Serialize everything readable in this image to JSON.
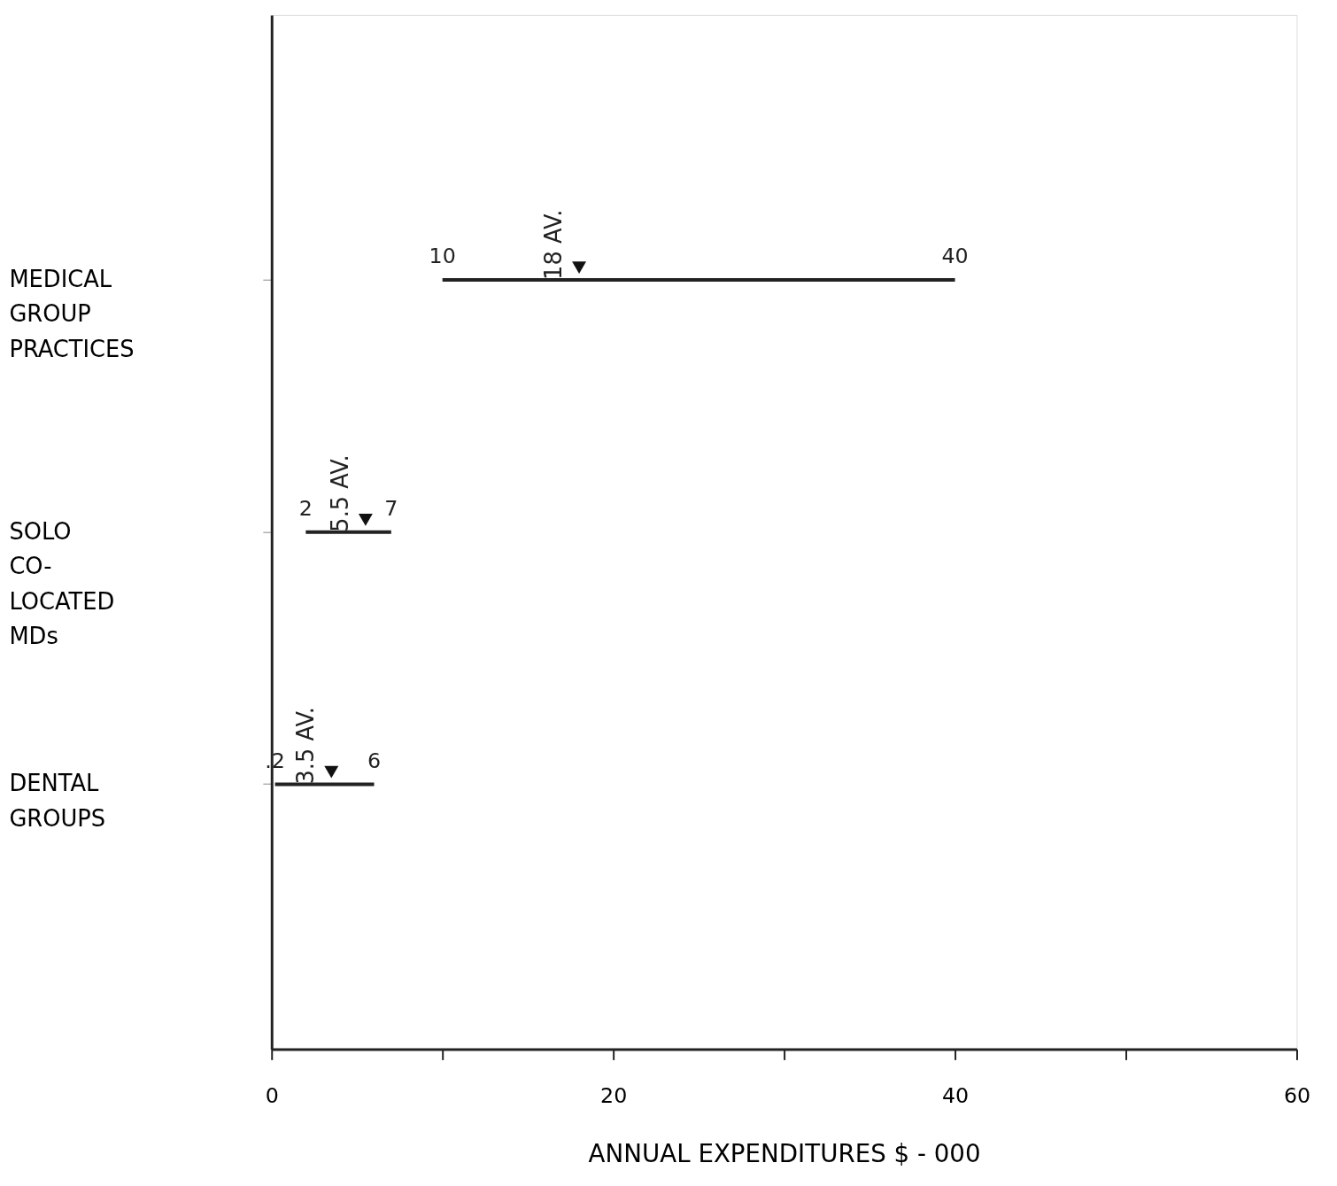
{
  "chart_data": {
    "type": "bar",
    "orientation": "horizontal",
    "categories": [
      "MEDICAL\nGROUP\nPRACTICES",
      "SOLO\nCO-\nLOCATED\nMDs",
      "DENTAL\nGROUPS"
    ],
    "base": [
      10,
      2,
      0.2
    ],
    "values": [
      30,
      5,
      5.8
    ],
    "color": "#222222",
    "series": [
      {
        "type": "scatter",
        "marker": "triangle",
        "color": "#111111",
        "x": [
          "MEDICAL\nGROUP\nPRACTICES",
          "SOLO\nCO-\nLOCATED\nMDs",
          "DENTAL\nGROUPS"
        ],
        "values": [
          18,
          5.5,
          3.5
        ],
        "value_labels": [
          "18 AV.",
          "5.5 AV.",
          "3.5 AV."
        ]
      }
    ],
    "annotations": [
      "10",
      "40",
      "2",
      "7",
      ".2",
      "6"
    ],
    "xlabel": "ANNUAL EXPENDITURES $ - 000",
    "xlim": [
      0,
      60
    ],
    "xticks": [
      0,
      {
        "value": 10,
        "label": null
      },
      20,
      {
        "value": 30,
        "label": null
      },
      40,
      {
        "value": 50,
        "label": null
      },
      60
    ],
    "grid": false
  }
}
